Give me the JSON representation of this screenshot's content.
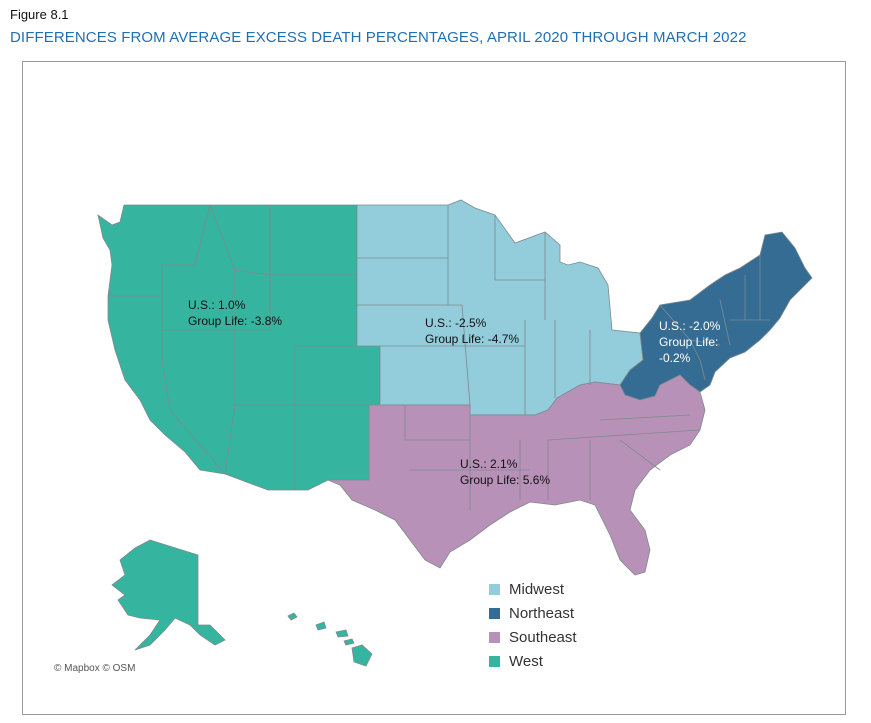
{
  "figure_label": "Figure 8.1",
  "title": "DIFFERENCES FROM AVERAGE EXCESS DEATH PERCENTAGES, APRIL 2020 THROUGH MARCH 2022",
  "credit": "© Mapbox © OSM",
  "colors": {
    "West": "#35b59f",
    "Midwest": "#93ccdb",
    "Northeast": "#356c94",
    "Southeast": "#b891b8",
    "border": "#7f8a8c"
  },
  "regions": {
    "West": {
      "us": "U.S.: 1.0%",
      "group_life": "Group Life: -3.8%"
    },
    "Midwest": {
      "us": "U.S.: -2.5%",
      "group_life": "Group Life: -4.7%"
    },
    "Northeast": {
      "us": "U.S.: -2.0%",
      "group_life": "Group Life:",
      "group_life_value": "-0.2%"
    },
    "Southeast": {
      "us": "U.S.: 2.1%",
      "group_life": "Group Life: 5.6%"
    }
  },
  "legend": [
    "Midwest",
    "Northeast",
    "Southeast",
    "West"
  ]
}
